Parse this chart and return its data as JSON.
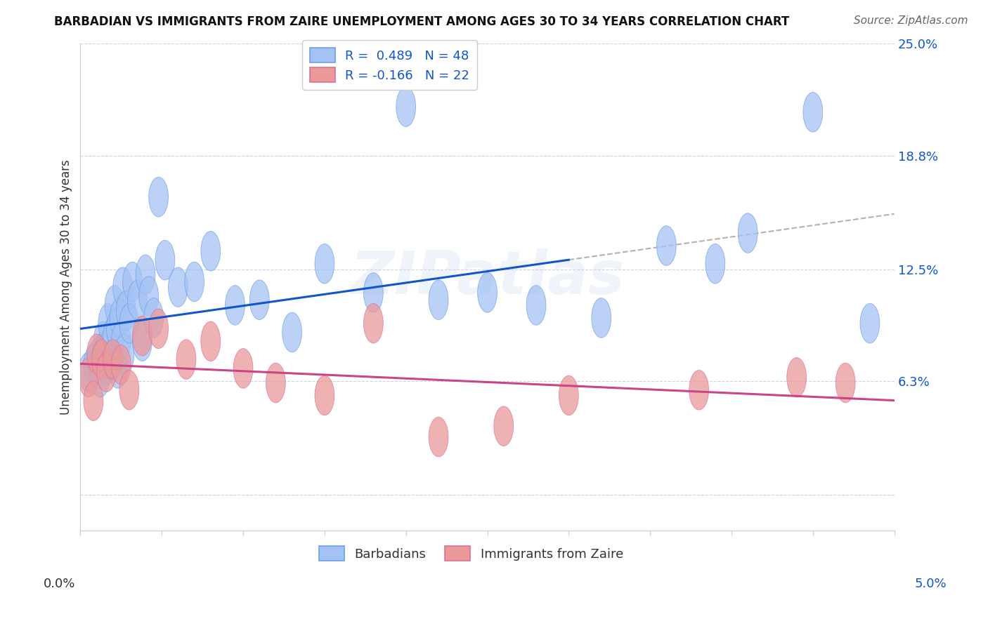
{
  "title": "BARBADIAN VS IMMIGRANTS FROM ZAIRE UNEMPLOYMENT AMONG AGES 30 TO 34 YEARS CORRELATION CHART",
  "source": "Source: ZipAtlas.com",
  "R_blue": 0.489,
  "N_blue": 48,
  "R_pink": -0.166,
  "N_pink": 22,
  "blue_dot_color": "#a4c2f4",
  "blue_edge_color": "#6d9eeb",
  "pink_dot_color": "#ea9999",
  "pink_edge_color": "#e06c9f",
  "trend_blue_color": "#1155cc",
  "trend_pink_color": "#cc4488",
  "dashed_color": "#aaaaaa",
  "label_color": "#1155cc",
  "legend_label_blue": "Barbadians",
  "legend_label_pink": "Immigrants from Zaire",
  "xlim": [
    0.0,
    5.0
  ],
  "ylim": [
    -2.0,
    25.0
  ],
  "ytick_vals": [
    0.0,
    6.3,
    12.5,
    18.8,
    25.0
  ],
  "ytick_labels": [
    "",
    "6.3%",
    "12.5%",
    "18.8%",
    "25.0%"
  ],
  "xtick_vals": [
    0.0,
    0.5,
    1.0,
    1.5,
    2.0,
    2.5,
    3.0,
    3.5,
    4.0,
    4.5,
    5.0
  ],
  "blue_x": [
    0.05,
    0.08,
    0.1,
    0.11,
    0.12,
    0.13,
    0.14,
    0.15,
    0.16,
    0.17,
    0.18,
    0.19,
    0.2,
    0.21,
    0.22,
    0.23,
    0.24,
    0.25,
    0.26,
    0.27,
    0.28,
    0.3,
    0.32,
    0.35,
    0.38,
    0.4,
    0.42,
    0.45,
    0.48,
    0.52,
    0.6,
    0.7,
    0.8,
    0.95,
    1.1,
    1.3,
    1.5,
    1.8,
    2.0,
    2.2,
    2.5,
    2.8,
    3.2,
    3.6,
    3.9,
    4.1,
    4.5,
    4.85
  ],
  "blue_y": [
    6.8,
    7.2,
    7.5,
    7.0,
    6.5,
    7.8,
    8.5,
    8.0,
    7.2,
    9.5,
    8.2,
    7.5,
    8.8,
    10.5,
    9.2,
    7.0,
    9.8,
    8.5,
    11.5,
    7.8,
    10.2,
    9.5,
    11.8,
    10.8,
    8.5,
    12.2,
    11.0,
    9.8,
    16.5,
    13.0,
    11.5,
    11.8,
    13.5,
    10.5,
    10.8,
    9.0,
    12.8,
    11.2,
    21.5,
    10.8,
    11.2,
    10.5,
    9.8,
    13.8,
    12.8,
    14.5,
    21.2,
    9.5
  ],
  "pink_x": [
    0.05,
    0.08,
    0.1,
    0.13,
    0.16,
    0.2,
    0.25,
    0.3,
    0.38,
    0.48,
    0.65,
    0.8,
    1.0,
    1.2,
    1.5,
    1.8,
    2.2,
    2.6,
    3.0,
    3.8,
    4.4,
    4.7
  ],
  "pink_y": [
    6.5,
    5.2,
    7.8,
    7.5,
    6.8,
    7.5,
    7.2,
    5.8,
    8.8,
    9.2,
    7.5,
    8.5,
    7.0,
    6.2,
    5.5,
    9.5,
    3.2,
    3.8,
    5.5,
    5.8,
    6.5,
    6.2
  ],
  "watermark_text": "ZIPatlas",
  "background_color": "#ffffff",
  "grid_color": "#c8cce8",
  "spine_color": "#cccccc"
}
